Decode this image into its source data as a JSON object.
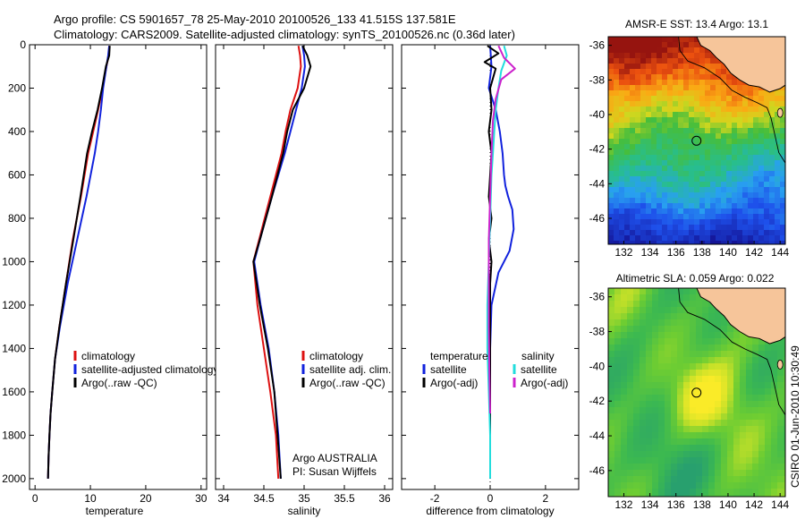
{
  "header": {
    "line1": "Argo profile: CS 5901657_78 25-May-2010 20100526_133 41.515S 137.581E",
    "line2": "Climatology: CARS2009. Satellite-adjusted climatology: synTS_20100526.nc (0.36d later)"
  },
  "side_text": "CSIRO 01-Jun-2010 10:30:49",
  "colors": {
    "climatology": "#dd1111",
    "satellite": "#1122dd",
    "argo": "#000000",
    "sat_salinity": "#22dddd",
    "argo_salinity": "#cc22cc",
    "land": "#f6c59a"
  },
  "chart_data": [
    {
      "type": "line",
      "xlabel": "temperature",
      "ylabel": "",
      "xlim": [
        -1,
        31
      ],
      "ylim": [
        2050,
        0
      ],
      "xticks": [
        0,
        10,
        20,
        30
      ],
      "yticks": [
        0,
        200,
        400,
        600,
        800,
        1000,
        1200,
        1400,
        1600,
        1800,
        2000
      ],
      "legend": [
        "climatology",
        "satellite-adjusted climatology",
        "Argo(..raw -QC)"
      ],
      "series": [
        {
          "name": "climatology",
          "color": "climatology",
          "x": [
            13.4,
            13.3,
            12.9,
            12.2,
            11.4,
            10.5,
            9.6,
            8.3,
            6.8,
            5.6,
            4.4,
            3.6,
            3.1,
            2.8,
            2.6,
            2.45,
            2.35
          ],
          "y": [
            5,
            50,
            100,
            200,
            300,
            400,
            500,
            700,
            900,
            1100,
            1300,
            1450,
            1600,
            1700,
            1800,
            1900,
            2000
          ]
        },
        {
          "name": "satellite-adjusted climatology",
          "color": "satellite",
          "x": [
            13.4,
            13.2,
            12.9,
            12.3,
            11.9,
            11.4,
            10.8,
            9.3,
            7.6,
            5.9,
            4.5,
            3.6,
            3.1,
            2.8,
            2.6,
            2.45,
            2.35
          ],
          "y": [
            5,
            50,
            100,
            200,
            300,
            400,
            500,
            700,
            900,
            1100,
            1300,
            1450,
            1600,
            1700,
            1800,
            1900,
            2000
          ]
        },
        {
          "name": "Argo(..raw -QC)",
          "color": "argo",
          "x": [
            13.5,
            13.4,
            12.8,
            12.1,
            11.3,
            10.3,
            9.4,
            8.2,
            6.9,
            5.6,
            4.4,
            3.6,
            3.1,
            2.8,
            2.6,
            2.45,
            2.35
          ],
          "y": [
            5,
            50,
            100,
            200,
            300,
            400,
            500,
            700,
            900,
            1100,
            1300,
            1450,
            1600,
            1700,
            1800,
            1900,
            2000
          ]
        }
      ]
    },
    {
      "type": "line",
      "xlabel": "salinity",
      "ylabel": "",
      "xlim": [
        33.9,
        36.1
      ],
      "ylim": [
        2050,
        0
      ],
      "xticks": [
        34,
        34.5,
        35,
        35.5,
        36
      ],
      "yticks": [],
      "legend": [
        "climatology",
        "satellite adj. clim.",
        "Argo(..raw -QC)"
      ],
      "annotations": [
        "Argo AUSTRALIA",
        "PI: Susan Wijffels"
      ],
      "series": [
        {
          "name": "climatology",
          "color": "climatology",
          "x": [
            34.93,
            34.95,
            34.96,
            34.92,
            34.83,
            34.77,
            34.72,
            34.58,
            34.44,
            34.37,
            34.42,
            34.5,
            34.58,
            34.65,
            34.68
          ],
          "y": [
            5,
            50,
            100,
            200,
            300,
            400,
            500,
            700,
            900,
            1000,
            1200,
            1400,
            1600,
            1800,
            2000
          ]
        },
        {
          "name": "satellite adj. clim.",
          "color": "satellite",
          "x": [
            34.98,
            35.0,
            35.01,
            34.97,
            34.9,
            34.83,
            34.76,
            34.6,
            34.45,
            34.38,
            34.46,
            34.56,
            34.63,
            34.68,
            34.71
          ],
          "y": [
            5,
            50,
            100,
            200,
            300,
            400,
            500,
            700,
            900,
            1000,
            1200,
            1400,
            1600,
            1800,
            2000
          ]
        },
        {
          "name": "Argo(..raw -QC)",
          "color": "argo",
          "x": [
            34.98,
            35.04,
            35.08,
            35.0,
            34.86,
            34.79,
            34.74,
            34.6,
            34.45,
            34.37,
            34.45,
            34.55,
            34.63,
            34.67,
            34.71
          ],
          "y": [
            5,
            50,
            100,
            200,
            300,
            400,
            500,
            700,
            900,
            1000,
            1200,
            1400,
            1600,
            1800,
            2000
          ]
        }
      ]
    },
    {
      "type": "line",
      "xlabel": "difference from climatology",
      "ylabel": "",
      "xlim": [
        -3.2,
        3.2
      ],
      "ylim": [
        2050,
        0
      ],
      "xticks": [
        -2,
        0,
        2
      ],
      "yticks": [],
      "legend": [
        "temperature",
        "satellite",
        "Argo(-adj)",
        "salinity",
        "satellite",
        "Argo(-adj)"
      ],
      "series": [
        {
          "name": "temperature satellite",
          "color": "satellite",
          "x": [
            0.0,
            0.05,
            -0.05,
            0.2,
            0.35,
            0.45,
            0.5,
            0.55,
            0.65,
            0.8,
            0.85,
            0.7,
            0.3,
            0.05,
            0.0,
            0.0,
            0.0,
            0.0
          ],
          "y": [
            5,
            100,
            200,
            300,
            400,
            500,
            600,
            650,
            700,
            760,
            850,
            950,
            1050,
            1200,
            1400,
            1600,
            1800,
            2000
          ]
        },
        {
          "name": "temperature Argo(-adj)",
          "color": "argo",
          "x": [
            -0.1,
            0.3,
            -0.2,
            0.2,
            0.0,
            0.05,
            -0.05,
            0.05,
            0.0,
            -0.05,
            0.05,
            -0.05,
            0.05,
            0.0,
            0.0,
            0.0,
            0.0,
            0.0,
            0.0
          ],
          "y": [
            5,
            40,
            80,
            110,
            200,
            300,
            400,
            500,
            600,
            700,
            800,
            900,
            1000,
            1100,
            1200,
            1400,
            1600,
            1800,
            2000
          ]
        },
        {
          "name": "salinity satellite",
          "color": "sat_salinity",
          "x": [
            0.5,
            0.6,
            0.4,
            0.3,
            0.2,
            0.15,
            0.1,
            0.05,
            0.0,
            -0.05,
            -0.1,
            -0.1,
            -0.05,
            0.0,
            0.0
          ],
          "y": [
            5,
            50,
            120,
            200,
            300,
            400,
            500,
            600,
            800,
            1000,
            1200,
            1400,
            1600,
            1800,
            2000
          ]
        },
        {
          "name": "salinity Argo(-adj)",
          "color": "argo_salinity",
          "x": [
            0.3,
            0.5,
            0.9,
            0.4,
            0.2,
            0.1,
            0.05,
            0.0,
            -0.05,
            -0.05,
            -0.05,
            -0.03,
            0.0
          ],
          "y": [
            5,
            60,
            110,
            160,
            250,
            350,
            500,
            700,
            900,
            1100,
            1300,
            1500,
            1700
          ]
        }
      ]
    },
    {
      "type": "heatmap",
      "title": "AMSR-E SST: 13.4 Argo: 13.1",
      "xlim": [
        130.8,
        144.4
      ],
      "ylim": [
        -47.5,
        -35.5
      ],
      "xticks": [
        132,
        134,
        136,
        138,
        140,
        142,
        144
      ],
      "yticks": [
        -36,
        -38,
        -40,
        -42,
        -44,
        -46
      ],
      "marker": {
        "lon": 137.581,
        "lat": -41.515
      }
    },
    {
      "type": "heatmap",
      "title": "Altimetric SLA: 0.059 Argo: 0.022",
      "xlim": [
        130.8,
        144.4
      ],
      "ylim": [
        -47.5,
        -35.5
      ],
      "xticks": [
        132,
        134,
        136,
        138,
        140,
        142,
        144
      ],
      "yticks": [
        -36,
        -38,
        -40,
        -42,
        -44,
        -46
      ],
      "marker": {
        "lon": 137.581,
        "lat": -41.515
      }
    }
  ]
}
